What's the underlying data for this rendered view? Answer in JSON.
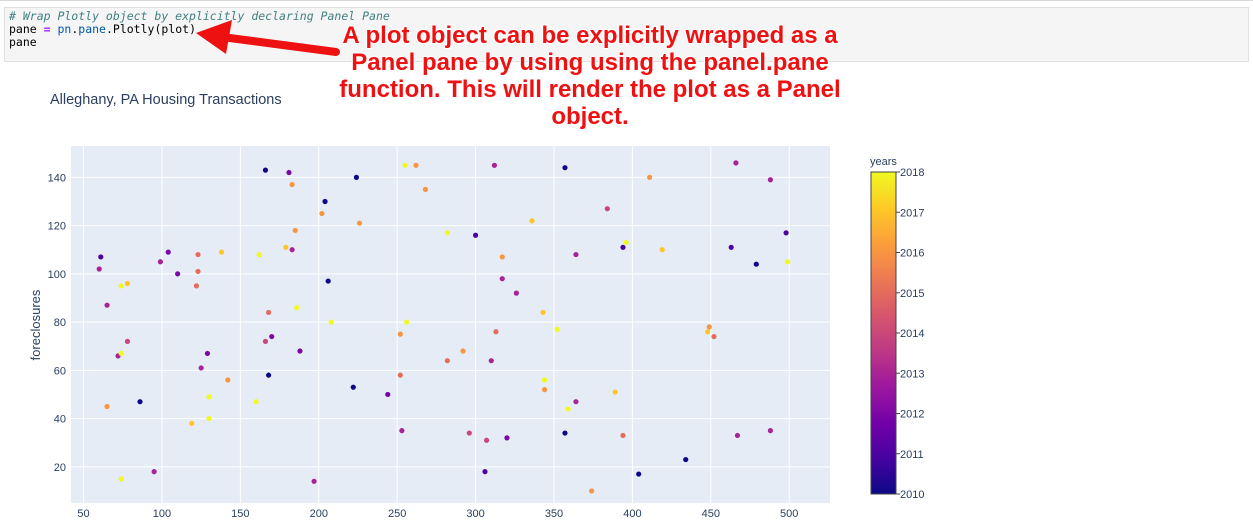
{
  "code": {
    "comment": "# Wrap Plotly object by explicitly declaring Panel Pane",
    "line2_var": "pane",
    "line2_op": " = ",
    "line2_mod1": "pn",
    "line2_dot1": ".",
    "line2_mod2": "pane",
    "line2_rest": ".Plotly(plot)",
    "line3": "pane"
  },
  "annotation": {
    "lines": [
      "A plot object can be explicitly wrapped as a",
      "Panel pane by using using the panel.pane",
      "function. This will render the plot as a Panel",
      "object."
    ],
    "color": "#ee1111"
  },
  "colors": {
    "plot_bg": "#e5ecf6",
    "grid": "#ffffff",
    "text": "#2a3f5f",
    "colorscale": [
      "#0d0887",
      "#46039f",
      "#7201a8",
      "#9c179e",
      "#bd3786",
      "#d8576b",
      "#ed7953",
      "#fb9f3a",
      "#fdca26",
      "#f0f921"
    ]
  },
  "chart_data": {
    "type": "scatter",
    "title": "Alleghany, PA Housing Transactions",
    "xlabel": "",
    "ylabel": "foreclosures",
    "xlim": [
      42,
      526
    ],
    "ylim": [
      5,
      153
    ],
    "x_ticks": [
      50,
      100,
      150,
      200,
      250,
      300,
      350,
      400,
      450,
      500
    ],
    "y_ticks": [
      20,
      40,
      60,
      80,
      100,
      120,
      140
    ],
    "colorbar": {
      "title": "years",
      "range": [
        2010,
        2018
      ],
      "ticks": [
        2018,
        2017,
        2016,
        2015,
        2014,
        2013,
        2012,
        2011,
        2010
      ]
    },
    "points": [
      {
        "x": 166,
        "y": 143,
        "year": 2010
      },
      {
        "x": 181,
        "y": 142,
        "year": 2012
      },
      {
        "x": 183,
        "y": 137,
        "year": 2016
      },
      {
        "x": 224,
        "y": 140,
        "year": 2010
      },
      {
        "x": 255,
        "y": 145,
        "year": 2018
      },
      {
        "x": 262,
        "y": 145,
        "year": 2016
      },
      {
        "x": 312,
        "y": 145,
        "year": 2013
      },
      {
        "x": 357,
        "y": 144,
        "year": 2010
      },
      {
        "x": 411,
        "y": 140,
        "year": 2016
      },
      {
        "x": 466,
        "y": 146,
        "year": 2013
      },
      {
        "x": 488,
        "y": 139,
        "year": 2013
      },
      {
        "x": 268,
        "y": 135,
        "year": 2016
      },
      {
        "x": 204,
        "y": 130,
        "year": 2010
      },
      {
        "x": 202,
        "y": 125,
        "year": 2016
      },
      {
        "x": 384,
        "y": 127,
        "year": 2014
      },
      {
        "x": 226,
        "y": 121,
        "year": 2016
      },
      {
        "x": 336,
        "y": 122,
        "year": 2017
      },
      {
        "x": 185,
        "y": 118,
        "year": 2016
      },
      {
        "x": 282,
        "y": 117,
        "year": 2018
      },
      {
        "x": 300,
        "y": 116,
        "year": 2011
      },
      {
        "x": 498,
        "y": 117,
        "year": 2011
      },
      {
        "x": 179,
        "y": 111,
        "year": 2017
      },
      {
        "x": 183,
        "y": 110,
        "year": 2013
      },
      {
        "x": 394,
        "y": 111,
        "year": 2011
      },
      {
        "x": 396,
        "y": 113,
        "year": 2018
      },
      {
        "x": 419,
        "y": 110,
        "year": 2017
      },
      {
        "x": 463,
        "y": 111,
        "year": 2011
      },
      {
        "x": 61,
        "y": 107,
        "year": 2011
      },
      {
        "x": 104,
        "y": 109,
        "year": 2012
      },
      {
        "x": 123,
        "y": 108,
        "year": 2015
      },
      {
        "x": 138,
        "y": 109,
        "year": 2017
      },
      {
        "x": 162,
        "y": 108,
        "year": 2018
      },
      {
        "x": 317,
        "y": 107,
        "year": 2016
      },
      {
        "x": 364,
        "y": 108,
        "year": 2013
      },
      {
        "x": 479,
        "y": 104,
        "year": 2010
      },
      {
        "x": 499,
        "y": 105,
        "year": 2018
      },
      {
        "x": 60,
        "y": 102,
        "year": 2013
      },
      {
        "x": 99,
        "y": 105,
        "year": 2013
      },
      {
        "x": 110,
        "y": 100,
        "year": 2012
      },
      {
        "x": 123,
        "y": 101,
        "year": 2015
      },
      {
        "x": 206,
        "y": 97,
        "year": 2010
      },
      {
        "x": 317,
        "y": 98,
        "year": 2013
      },
      {
        "x": 74,
        "y": 95,
        "year": 2018
      },
      {
        "x": 78,
        "y": 96,
        "year": 2017
      },
      {
        "x": 122,
        "y": 95,
        "year": 2015
      },
      {
        "x": 326,
        "y": 92,
        "year": 2013
      },
      {
        "x": 65,
        "y": 87,
        "year": 2013
      },
      {
        "x": 168,
        "y": 84,
        "year": 2015
      },
      {
        "x": 186,
        "y": 86,
        "year": 2018
      },
      {
        "x": 208,
        "y": 80,
        "year": 2018
      },
      {
        "x": 256,
        "y": 80,
        "year": 2018
      },
      {
        "x": 343,
        "y": 84,
        "year": 2017
      },
      {
        "x": 449,
        "y": 78,
        "year": 2016
      },
      {
        "x": 448,
        "y": 76,
        "year": 2017
      },
      {
        "x": 252,
        "y": 75,
        "year": 2016
      },
      {
        "x": 313,
        "y": 76,
        "year": 2015
      },
      {
        "x": 352,
        "y": 77,
        "year": 2018
      },
      {
        "x": 452,
        "y": 74,
        "year": 2015
      },
      {
        "x": 170,
        "y": 74,
        "year": 2012
      },
      {
        "x": 78,
        "y": 72,
        "year": 2014
      },
      {
        "x": 166,
        "y": 72,
        "year": 2014
      },
      {
        "x": 72,
        "y": 66,
        "year": 2013
      },
      {
        "x": 74,
        "y": 67,
        "year": 2018
      },
      {
        "x": 129,
        "y": 67,
        "year": 2012
      },
      {
        "x": 188,
        "y": 68,
        "year": 2012
      },
      {
        "x": 292,
        "y": 68,
        "year": 2016
      },
      {
        "x": 282,
        "y": 64,
        "year": 2015
      },
      {
        "x": 310,
        "y": 64,
        "year": 2013
      },
      {
        "x": 125,
        "y": 61,
        "year": 2013
      },
      {
        "x": 168,
        "y": 58,
        "year": 2010
      },
      {
        "x": 142,
        "y": 56,
        "year": 2016
      },
      {
        "x": 252,
        "y": 58,
        "year": 2015
      },
      {
        "x": 344,
        "y": 56,
        "year": 2018
      },
      {
        "x": 344,
        "y": 52,
        "year": 2016
      },
      {
        "x": 222,
        "y": 53,
        "year": 2010
      },
      {
        "x": 244,
        "y": 50,
        "year": 2012
      },
      {
        "x": 389,
        "y": 51,
        "year": 2017
      },
      {
        "x": 130,
        "y": 49,
        "year": 2018
      },
      {
        "x": 86,
        "y": 47,
        "year": 2010
      },
      {
        "x": 160,
        "y": 47,
        "year": 2018
      },
      {
        "x": 65,
        "y": 45,
        "year": 2016
      },
      {
        "x": 359,
        "y": 44,
        "year": 2018
      },
      {
        "x": 364,
        "y": 47,
        "year": 2013
      },
      {
        "x": 119,
        "y": 38,
        "year": 2017
      },
      {
        "x": 130,
        "y": 40,
        "year": 2018
      },
      {
        "x": 253,
        "y": 35,
        "year": 2013
      },
      {
        "x": 296,
        "y": 34,
        "year": 2014
      },
      {
        "x": 307,
        "y": 31,
        "year": 2014
      },
      {
        "x": 320,
        "y": 32,
        "year": 2012
      },
      {
        "x": 357,
        "y": 34,
        "year": 2010
      },
      {
        "x": 394,
        "y": 33,
        "year": 2015
      },
      {
        "x": 467,
        "y": 33,
        "year": 2013
      },
      {
        "x": 488,
        "y": 35,
        "year": 2013
      },
      {
        "x": 434,
        "y": 23,
        "year": 2010
      },
      {
        "x": 95,
        "y": 18,
        "year": 2013
      },
      {
        "x": 306,
        "y": 18,
        "year": 2011
      },
      {
        "x": 404,
        "y": 17,
        "year": 2010
      },
      {
        "x": 74,
        "y": 15,
        "year": 2018
      },
      {
        "x": 197,
        "y": 14,
        "year": 2013
      },
      {
        "x": 374,
        "y": 10,
        "year": 2016
      }
    ]
  }
}
